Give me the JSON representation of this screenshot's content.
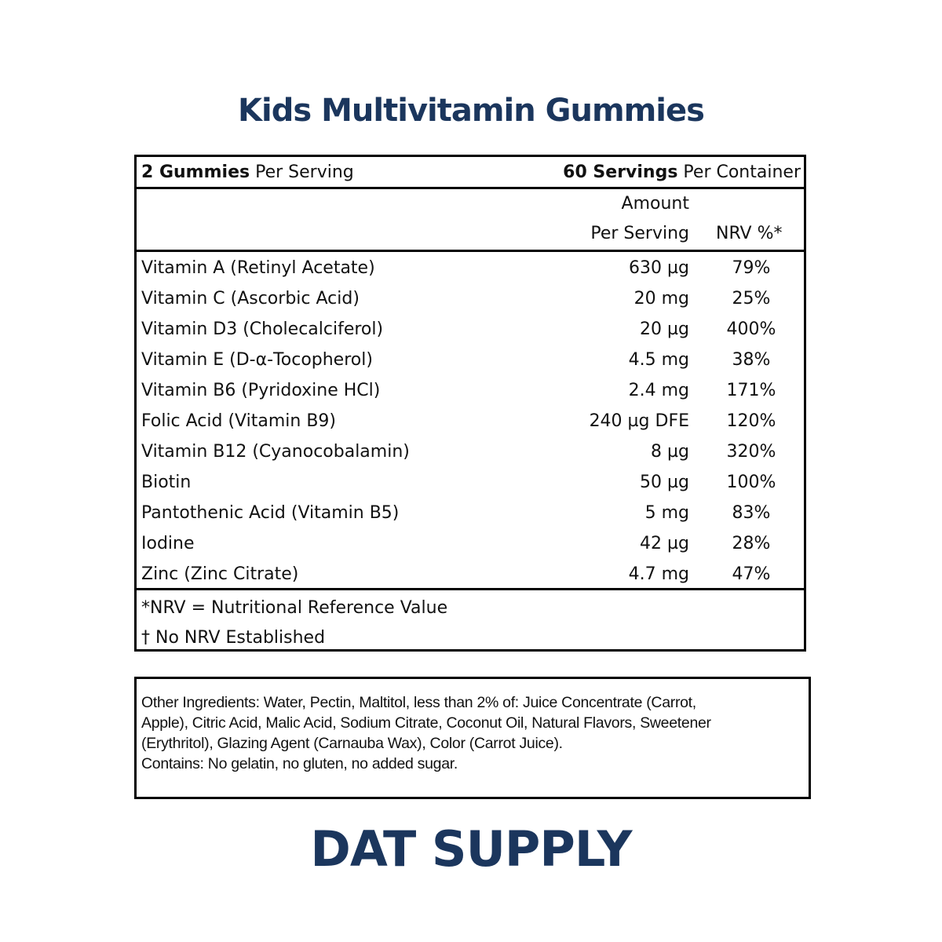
{
  "title": "Kids Multivitamin Gummies",
  "header": {
    "serving_bold": "2 Gummies",
    "serving_rest": " Per Serving",
    "container_bold": "60 Servings",
    "container_rest": " Per Container"
  },
  "columns": {
    "amount_line1": "Amount",
    "amount_line2": "Per Serving",
    "nrv": "NRV %*"
  },
  "rows": [
    {
      "name": "Vitamin A (Retinyl Acetate)",
      "amount": "630 µg",
      "nrv": "79%"
    },
    {
      "name": "Vitamin C (Ascorbic Acid)",
      "amount": "20 mg",
      "nrv": "25%"
    },
    {
      "name": "Vitamin D3 (Cholecalciferol)",
      "amount": "20 µg",
      "nrv": "400%"
    },
    {
      "name": "Vitamin E (D-α-Tocopherol)",
      "amount": "4.5 mg",
      "nrv": "38%"
    },
    {
      "name": "Vitamin B6 (Pyridoxine HCl)",
      "amount": "2.4 mg",
      "nrv": "171%"
    },
    {
      "name": "Folic Acid (Vitamin B9)",
      "amount": "240 µg DFE",
      "nrv": "120%"
    },
    {
      "name": "Vitamin B12 (Cyanocobalamin)",
      "amount": "8 µg",
      "nrv": "320%"
    },
    {
      "name": "Biotin",
      "amount": "50 µg",
      "nrv": "100%"
    },
    {
      "name": "Pantothenic Acid (Vitamin B5)",
      "amount": "5 mg",
      "nrv": "83%"
    },
    {
      "name": "Iodine",
      "amount": "42 µg",
      "nrv": "28%"
    },
    {
      "name": "Zinc (Zinc Citrate)",
      "amount": "4.7 mg",
      "nrv": "47%"
    }
  ],
  "footnotes": [
    "*NRV = Nutritional Reference Value",
    "† No NRV Established"
  ],
  "ingredients": {
    "lines": [
      "Other Ingredients: Water, Pectin, Maltitol, less than 2% of: Juice Concentrate (Carrot,",
      "Apple), Citric Acid, Malic Acid, Sodium Citrate, Coconut Oil, Natural Flavors, Sweetener",
      "(Erythritol), Glazing Agent (Carnauba Wax), Color (Carrot Juice).",
      "Contains: No gelatin, no gluten, no added sugar."
    ]
  },
  "brand": "DAT SUPPLY",
  "colors": {
    "brand": "#1b365d",
    "border": "#000000"
  }
}
